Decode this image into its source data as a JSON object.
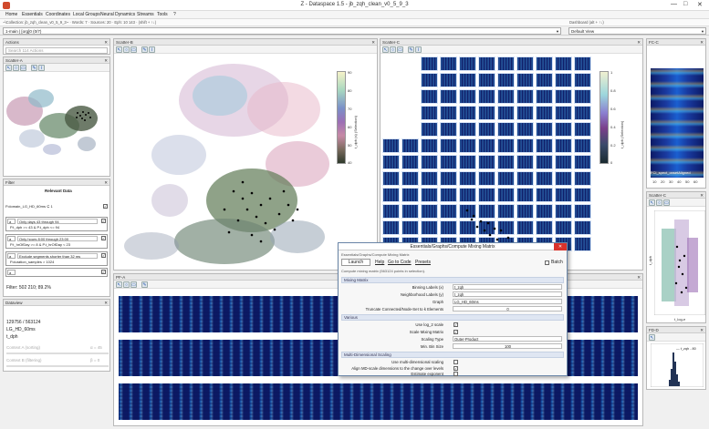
{
  "window": {
    "title": "Z - Dataspace 1.5 - jb_zqh_clean_v0_5_9_3",
    "minimize": "—",
    "maximize": "□",
    "close": "✕"
  },
  "menu": [
    "Home",
    "Essentials",
    "Coordinates",
    "Local Groups",
    "Neural Dynamics",
    "Streams",
    "Tools",
    "?"
  ],
  "infobar": {
    "left": "~\\Collection: jb_zqh_clean_v0_5_9_3~ · Words: 7 · Sources: 20 · Eph: 10 143 · (shift + ↑↓)",
    "right": "Dashboard (alt + ↑↓)"
  },
  "selectors": {
    "collection": "1-main | [org]0 (0/7)",
    "dashboard": "Default View"
  },
  "actions_panel": {
    "title": "Actions",
    "search_placeholder": "Search 114 Actions"
  },
  "scatter_a": {
    "title": "Scatter-A"
  },
  "filter_panel": {
    "title": "Filter",
    "header": "Relevant Data",
    "rows": [
      {
        "label": "P.domain_LG_HD_60ms ⊆ 1",
        "checked": true
      },
      {
        "sel": "a",
        "text": "Only days 43 through 94",
        "desc": "P.t_dph >= 43 & P.t_dph <= 94",
        "checked": true
      },
      {
        "sel": "a",
        "text": "Only hours 8:00 through 23:00",
        "desc": "P.t_hrOfDay >= 8 & P.t_hrOfDay < 23",
        "checked": true
      },
      {
        "sel": "a",
        "text": "Exclude segments shorter than 32 ms",
        "desc": "P.duration_samples > 1024",
        "checked": true
      },
      {
        "sel": "a",
        "text": "",
        "desc": "",
        "checked": true
      }
    ],
    "result": "Filter: 502 210; 89.2%"
  },
  "dataview": {
    "title": "Dataview",
    "count": "129756 / 563124",
    "name": "LG_HD_60ms",
    "field": "t_dph",
    "c1_label": "Context A (sorting)",
    "c1_val": "α = 45",
    "c2_label": "Context B (filtering)",
    "c2_val": "β = 0"
  },
  "scatter_b": {
    "title": "Scatter-B",
    "colorbar_label": "t_dph (s) (Selection)",
    "ticks": [
      "90",
      "80",
      "70",
      "60",
      "50",
      "40"
    ]
  },
  "scatter_c": {
    "title": "Scatter-C",
    "colorbar_label": "t_dph (Selection)",
    "ticks": [
      "1",
      "0.8",
      "0.6",
      "0.4",
      "0.2",
      "0"
    ]
  },
  "fc_panel": {
    "title": "FC-C",
    "label": "FCI_spect_onsetAligned",
    "xticks": [
      "10",
      "20",
      "30",
      "40",
      "50",
      "60"
    ]
  },
  "scatter_c2": {
    "title": "Scatter-C",
    "xlabel": "t_log-e",
    "ylabel": "t_dph"
  },
  "pfa_panel": {
    "title": "PF-A"
  },
  "fd_panel": {
    "title": "FD-D",
    "legend": "— t_zqh - 80"
  },
  "dialog": {
    "title": "Essentials/Graphs/Compute Mixing Matrix",
    "breadcrumb": "Essentials/Graphs/Compute Mixing Matrix",
    "buttons": {
      "launch": "Launch",
      "help": "Help",
      "code": "Go to Code",
      "presets": "Presets",
      "batch": "Batch"
    },
    "note": "Compute mixing matrix (563124 points in selection).",
    "sections": {
      "mixing": "Mixing Matrix",
      "various": "Various",
      "mds": "Multi-Dimensional Scaling"
    },
    "fields": {
      "binning_label": "Binning Labels (x)",
      "binning_val": "t_zqh",
      "neigh_label": "Neighborhood Labels (y)",
      "neigh_val": "t_zqh",
      "graph_label": "Graph",
      "graph_val": "LG_HD_60ms",
      "trunc_label": "Truncate Connected/Node-Set to k Elements",
      "trunc_val": "0",
      "log2_label": "Use log_2 scale",
      "scale_label": "Scale Mixing Matrix",
      "stype_label": "Scaling Type",
      "stype_val": "Outer-Product",
      "minbin_label": "Min. Bin Size",
      "minbin_val": "100",
      "mds_label": "Use multi-dimensional scaling",
      "align_label": "Align MD-scale dimensions to the change over levels",
      "expo_label": "Estimate exponent"
    }
  }
}
